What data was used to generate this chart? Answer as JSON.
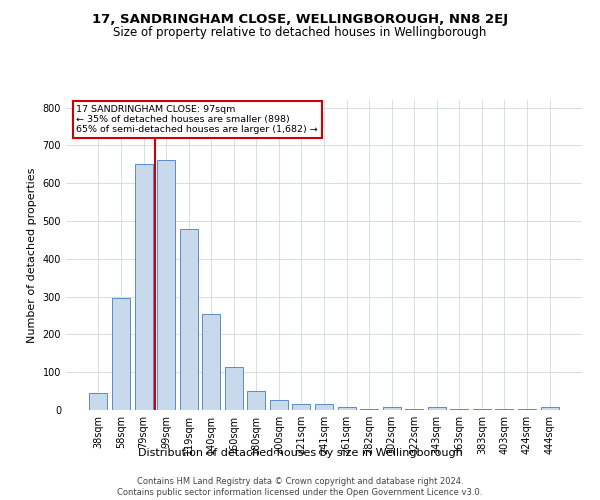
{
  "title1": "17, SANDRINGHAM CLOSE, WELLINGBOROUGH, NN8 2EJ",
  "title2": "Size of property relative to detached houses in Wellingborough",
  "xlabel": "Distribution of detached houses by size in Wellingborough",
  "ylabel": "Number of detached properties",
  "footer1": "Contains HM Land Registry data © Crown copyright and database right 2024.",
  "footer2": "Contains public sector information licensed under the Open Government Licence v3.0.",
  "annotation_line1": "17 SANDRINGHAM CLOSE: 97sqm",
  "annotation_line2": "← 35% of detached houses are smaller (898)",
  "annotation_line3": "65% of semi-detached houses are larger (1,682) →",
  "bar_color": "#c9d9ec",
  "bar_edge_color": "#5a8ac6",
  "vline_color": "#cc0000",
  "annotation_box_color": "#cc0000",
  "background_color": "#ffffff",
  "grid_color": "#d0d8e8",
  "categories": [
    "38sqm",
    "58sqm",
    "79sqm",
    "99sqm",
    "119sqm",
    "140sqm",
    "160sqm",
    "180sqm",
    "200sqm",
    "221sqm",
    "241sqm",
    "261sqm",
    "282sqm",
    "302sqm",
    "322sqm",
    "343sqm",
    "363sqm",
    "383sqm",
    "403sqm",
    "424sqm",
    "444sqm"
  ],
  "values": [
    45,
    295,
    650,
    660,
    480,
    255,
    115,
    50,
    27,
    17,
    15,
    8,
    3,
    7,
    3,
    8,
    3,
    3,
    3,
    3,
    8
  ],
  "ylim": [
    0,
    820
  ],
  "yticks": [
    0,
    100,
    200,
    300,
    400,
    500,
    600,
    700,
    800
  ],
  "vline_x_index": 3,
  "title1_fontsize": 9.5,
  "title2_fontsize": 8.5,
  "xlabel_fontsize": 8.0,
  "ylabel_fontsize": 8.0,
  "tick_fontsize": 7.0,
  "footer_fontsize": 6.0
}
